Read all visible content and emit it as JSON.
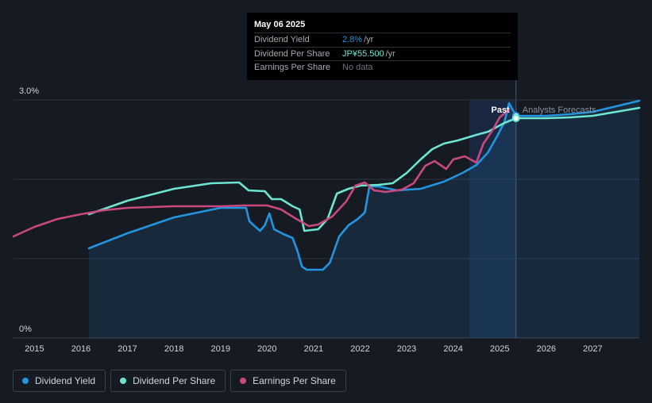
{
  "colors": {
    "background": "#151a23",
    "dividend_yield": "#2394df",
    "dividend_per_share": "#6de5d2",
    "earnings_per_share": "#c9487f",
    "forecast_band": "#1a2c45",
    "grid": "#2e3440",
    "text": "#d0d4dc"
  },
  "tooltip": {
    "date": "May 06 2025",
    "rows": [
      {
        "label": "Dividend Yield",
        "value": "2.8%",
        "unit": "/yr",
        "color": "#2394df"
      },
      {
        "label": "Dividend Per Share",
        "value": "JP¥55.500",
        "unit": "/yr",
        "color": "#6de5d2"
      },
      {
        "label": "Earnings Per Share",
        "value": "No data",
        "unit": "",
        "color": "#6b7280"
      }
    ]
  },
  "annotations": {
    "past": "Past",
    "forecast": "Analysts Forecasts"
  },
  "legend": [
    {
      "label": "Dividend Yield",
      "color": "#2394df"
    },
    {
      "label": "Dividend Per Share",
      "color": "#6de5d2"
    },
    {
      "label": "Earnings Per Share",
      "color": "#c9487f"
    }
  ],
  "chart_data": {
    "type": "line",
    "title": "",
    "xlabel": "",
    "ylabel": "",
    "y_tick_labels": [
      "0%",
      "3.0%"
    ],
    "ylim": [
      0,
      3.0
    ],
    "xlim": [
      2014.55,
      2028.0
    ],
    "x_ticks": [
      2015,
      2016,
      2017,
      2018,
      2019,
      2020,
      2021,
      2022,
      2023,
      2024,
      2025,
      2026,
      2027
    ],
    "forecast_start": 2024.35,
    "cursor_x": 2025.35,
    "series": [
      {
        "name": "Dividend Yield",
        "color": "#2394df",
        "filled": true,
        "points": [
          [
            2016.17,
            1.13
          ],
          [
            2017.0,
            1.32
          ],
          [
            2018.0,
            1.52
          ],
          [
            2019.0,
            1.64
          ],
          [
            2019.55,
            1.64
          ],
          [
            2019.62,
            1.47
          ],
          [
            2019.75,
            1.4
          ],
          [
            2019.85,
            1.35
          ],
          [
            2019.95,
            1.42
          ],
          [
            2020.05,
            1.57
          ],
          [
            2020.15,
            1.37
          ],
          [
            2020.35,
            1.31
          ],
          [
            2020.55,
            1.26
          ],
          [
            2020.65,
            1.1
          ],
          [
            2020.75,
            0.9
          ],
          [
            2020.85,
            0.86
          ],
          [
            2021.2,
            0.86
          ],
          [
            2021.35,
            0.95
          ],
          [
            2021.55,
            1.28
          ],
          [
            2021.75,
            1.42
          ],
          [
            2021.95,
            1.5
          ],
          [
            2022.1,
            1.58
          ],
          [
            2022.2,
            1.91
          ],
          [
            2022.4,
            1.91
          ],
          [
            2022.8,
            1.86
          ],
          [
            2023.3,
            1.88
          ],
          [
            2023.8,
            1.97
          ],
          [
            2024.2,
            2.08
          ],
          [
            2024.5,
            2.18
          ],
          [
            2024.75,
            2.34
          ],
          [
            2024.95,
            2.55
          ],
          [
            2025.1,
            2.72
          ],
          [
            2025.2,
            2.96
          ],
          [
            2025.35,
            2.8
          ],
          [
            2026.0,
            2.8
          ],
          [
            2026.5,
            2.82
          ],
          [
            2027.0,
            2.85
          ],
          [
            2027.5,
            2.92
          ],
          [
            2028.0,
            2.99
          ]
        ]
      },
      {
        "name": "Dividend Per Share",
        "color": "#6de5d2",
        "filled": false,
        "points": [
          [
            2016.17,
            1.56
          ],
          [
            2017.0,
            1.73
          ],
          [
            2018.0,
            1.88
          ],
          [
            2018.8,
            1.95
          ],
          [
            2019.4,
            1.96
          ],
          [
            2019.6,
            1.86
          ],
          [
            2019.95,
            1.85
          ],
          [
            2020.1,
            1.75
          ],
          [
            2020.3,
            1.75
          ],
          [
            2020.55,
            1.66
          ],
          [
            2020.7,
            1.62
          ],
          [
            2020.8,
            1.35
          ],
          [
            2021.1,
            1.37
          ],
          [
            2021.3,
            1.5
          ],
          [
            2021.5,
            1.82
          ],
          [
            2021.75,
            1.88
          ],
          [
            2022.0,
            1.92
          ],
          [
            2022.4,
            1.93
          ],
          [
            2022.7,
            1.95
          ],
          [
            2023.0,
            2.08
          ],
          [
            2023.3,
            2.25
          ],
          [
            2023.55,
            2.38
          ],
          [
            2023.8,
            2.45
          ],
          [
            2024.1,
            2.49
          ],
          [
            2024.5,
            2.56
          ],
          [
            2024.75,
            2.6
          ],
          [
            2025.1,
            2.71
          ],
          [
            2025.35,
            2.77
          ],
          [
            2026.0,
            2.77
          ],
          [
            2026.5,
            2.78
          ],
          [
            2027.0,
            2.8
          ],
          [
            2027.5,
            2.85
          ],
          [
            2028.0,
            2.9
          ]
        ]
      },
      {
        "name": "Earnings Per Share",
        "color": "#c9487f",
        "filled": false,
        "points": [
          [
            2014.55,
            1.28
          ],
          [
            2015.0,
            1.4
          ],
          [
            2015.5,
            1.5
          ],
          [
            2016.0,
            1.56
          ],
          [
            2016.5,
            1.61
          ],
          [
            2017.0,
            1.64
          ],
          [
            2018.0,
            1.66
          ],
          [
            2019.0,
            1.66
          ],
          [
            2019.5,
            1.67
          ],
          [
            2020.0,
            1.67
          ],
          [
            2020.3,
            1.62
          ],
          [
            2020.6,
            1.51
          ],
          [
            2020.9,
            1.41
          ],
          [
            2021.1,
            1.43
          ],
          [
            2021.4,
            1.53
          ],
          [
            2021.7,
            1.72
          ],
          [
            2021.9,
            1.92
          ],
          [
            2022.1,
            1.96
          ],
          [
            2022.3,
            1.86
          ],
          [
            2022.55,
            1.84
          ],
          [
            2022.9,
            1.87
          ],
          [
            2023.15,
            1.95
          ],
          [
            2023.4,
            2.17
          ],
          [
            2023.6,
            2.23
          ],
          [
            2023.85,
            2.13
          ],
          [
            2024.0,
            2.25
          ],
          [
            2024.25,
            2.29
          ],
          [
            2024.5,
            2.21
          ],
          [
            2024.65,
            2.45
          ],
          [
            2024.85,
            2.62
          ],
          [
            2025.0,
            2.78
          ],
          [
            2025.2,
            2.88
          ]
        ]
      }
    ]
  }
}
